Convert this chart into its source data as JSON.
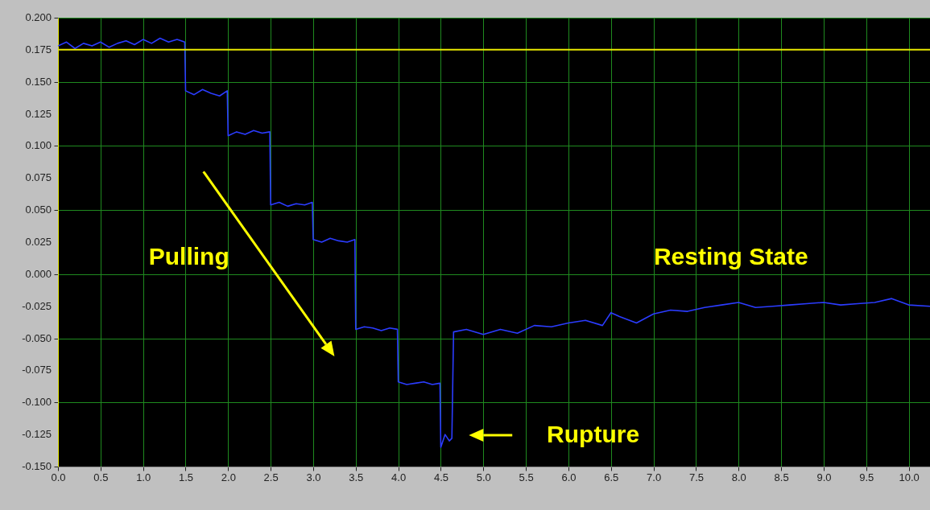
{
  "chart_data": {
    "type": "line",
    "x": [
      0,
      0.1,
      0.2,
      0.3,
      0.4,
      0.5,
      0.6,
      0.7,
      0.8,
      0.9,
      1.0,
      1.1,
      1.2,
      1.3,
      1.4,
      1.49,
      1.5,
      1.6,
      1.7,
      1.8,
      1.9,
      1.99,
      2.0,
      2.1,
      2.2,
      2.3,
      2.4,
      2.49,
      2.5,
      2.6,
      2.7,
      2.8,
      2.9,
      2.99,
      3.0,
      3.1,
      3.2,
      3.3,
      3.4,
      3.49,
      3.5,
      3.6,
      3.7,
      3.8,
      3.9,
      3.99,
      4.0,
      4.1,
      4.2,
      4.3,
      4.4,
      4.49,
      4.5,
      4.55,
      4.6,
      4.63,
      4.65,
      4.8,
      5.0,
      5.2,
      5.4,
      5.6,
      5.8,
      6.0,
      6.2,
      6.4,
      6.5,
      6.6,
      6.8,
      7.0,
      7.2,
      7.4,
      7.6,
      7.8,
      8.0,
      8.2,
      8.4,
      8.6,
      8.8,
      9.0,
      9.2,
      9.4,
      9.6,
      9.8,
      10.0,
      10.25
    ],
    "series": [
      {
        "color": "#2b3cff",
        "values": [
          0.178,
          0.181,
          0.176,
          0.18,
          0.178,
          0.181,
          0.177,
          0.18,
          0.182,
          0.179,
          0.183,
          0.18,
          0.184,
          0.181,
          0.183,
          0.181,
          0.143,
          0.14,
          0.144,
          0.141,
          0.139,
          0.143,
          0.108,
          0.111,
          0.109,
          0.112,
          0.11,
          0.111,
          0.054,
          0.056,
          0.053,
          0.055,
          0.054,
          0.056,
          0.027,
          0.025,
          0.028,
          0.026,
          0.025,
          0.027,
          -0.043,
          -0.041,
          -0.042,
          -0.044,
          -0.042,
          -0.043,
          -0.084,
          -0.086,
          -0.085,
          -0.084,
          -0.086,
          -0.085,
          -0.135,
          -0.125,
          -0.13,
          -0.128,
          -0.045,
          -0.043,
          -0.047,
          -0.043,
          -0.046,
          -0.04,
          -0.041,
          -0.038,
          -0.036,
          -0.04,
          -0.03,
          -0.033,
          -0.038,
          -0.031,
          -0.028,
          -0.029,
          -0.026,
          -0.024,
          -0.022,
          -0.026,
          -0.025,
          -0.024,
          -0.023,
          -0.022,
          -0.024,
          -0.023,
          -0.022,
          -0.019,
          -0.024,
          -0.025
        ]
      }
    ],
    "xlim": [
      0,
      10.25
    ],
    "xticks": [
      {
        "value": 0,
        "label": "0.0"
      },
      {
        "value": 0.5,
        "label": "0.5"
      },
      {
        "value": 1,
        "label": "1.0"
      },
      {
        "value": 1.5,
        "label": "1.5"
      },
      {
        "value": 2,
        "label": "2.0"
      },
      {
        "value": 2.5,
        "label": "2.5"
      },
      {
        "value": 3,
        "label": "3.0"
      },
      {
        "value": 3.5,
        "label": "3.5"
      },
      {
        "value": 4,
        "label": "4.0"
      },
      {
        "value": 4.5,
        "label": "4.5"
      },
      {
        "value": 5,
        "label": "5.0"
      },
      {
        "value": 5.5,
        "label": "5.5"
      },
      {
        "value": 6,
        "label": "6.0"
      },
      {
        "value": 6.5,
        "label": "6.5"
      },
      {
        "value": 7,
        "label": "7.0"
      },
      {
        "value": 7.5,
        "label": "7.5"
      },
      {
        "value": 8,
        "label": "8.0"
      },
      {
        "value": 8.5,
        "label": "8.5"
      },
      {
        "value": 9,
        "label": "9.0"
      },
      {
        "value": 9.5,
        "label": "9.5"
      },
      {
        "value": 10,
        "label": "10.0"
      }
    ],
    "ylim": [
      -0.15,
      0.2
    ],
    "yticks": [
      {
        "value": -0.15,
        "label": "-0.150"
      },
      {
        "value": -0.125,
        "label": "-0.125"
      },
      {
        "value": -0.1,
        "label": "-0.100"
      },
      {
        "value": -0.075,
        "label": "-0.075"
      },
      {
        "value": -0.05,
        "label": "-0.050"
      },
      {
        "value": -0.025,
        "label": "-0.025"
      },
      {
        "value": 0,
        "label": "0.000"
      },
      {
        "value": 0.025,
        "label": "0.025"
      },
      {
        "value": 0.05,
        "label": "0.050"
      },
      {
        "value": 0.075,
        "label": "0.075"
      },
      {
        "value": 0.1,
        "label": "0.100"
      },
      {
        "value": 0.125,
        "label": "0.125"
      },
      {
        "value": 0.15,
        "label": "0.150"
      },
      {
        "value": 0.175,
        "label": "0.175"
      },
      {
        "value": 0.2,
        "label": "0.200"
      }
    ],
    "grid": true,
    "ref_lines": [
      {
        "axis": "y",
        "value": 0.175,
        "color": "#e8e800"
      }
    ],
    "annotations": [
      "Pulling",
      "Resting State",
      "Rupture"
    ]
  }
}
